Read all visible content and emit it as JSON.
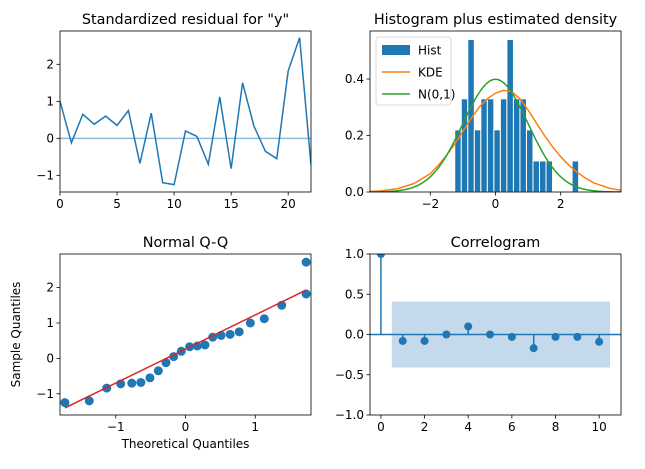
{
  "colors": {
    "blue": "#1f77b4",
    "orange": "#ff7f0e",
    "green": "#2ca02c",
    "red": "#d62728",
    "band": "#c5d9ec"
  },
  "chart_data": [
    {
      "id": "resid",
      "type": "line",
      "title": "Standardized residual for \"y\"",
      "xlabel": "",
      "ylabel": "",
      "xlim": [
        0,
        22
      ],
      "ylim": [
        -1.45,
        2.9
      ],
      "xticks": [
        0,
        5,
        10,
        15,
        20
      ],
      "yticks": [
        -1,
        0,
        1,
        2
      ],
      "hline": 0,
      "series": [
        {
          "x": [
            0,
            1,
            2,
            3,
            4,
            5,
            6,
            7,
            8,
            9,
            10,
            11,
            12,
            13,
            14,
            15,
            16,
            17,
            18,
            19,
            20,
            21,
            22
          ],
          "values": [
            1.0,
            -0.12,
            0.65,
            0.38,
            0.6,
            0.35,
            0.75,
            -0.68,
            0.68,
            -1.2,
            -1.25,
            0.2,
            0.05,
            -0.7,
            1.12,
            -0.82,
            1.5,
            0.33,
            -0.35,
            -0.55,
            1.82,
            2.72,
            -0.72
          ]
        }
      ]
    },
    {
      "id": "hist",
      "type": "bar",
      "title": "Histogram plus estimated density",
      "xlabel": "",
      "ylabel": "",
      "xlim": [
        -3.85,
        3.85
      ],
      "ylim": [
        0,
        0.57
      ],
      "xticks": [
        -2,
        0,
        2
      ],
      "yticks": [
        0.0,
        0.2,
        0.4
      ],
      "legend": {
        "position": "upper-left",
        "entries": [
          "Hist",
          "KDE",
          "N(0,1)"
        ]
      },
      "bins": [
        {
          "left": -1.25,
          "width": 0.2,
          "value": 0.22
        },
        {
          "left": -1.05,
          "width": 0.2,
          "value": 0.33
        },
        {
          "left": -0.85,
          "width": 0.2,
          "value": 0.54
        },
        {
          "left": -0.65,
          "width": 0.2,
          "value": 0.22
        },
        {
          "left": -0.45,
          "width": 0.2,
          "value": 0.33
        },
        {
          "left": -0.25,
          "width": 0.2,
          "value": 0.33
        },
        {
          "left": -0.05,
          "width": 0.2,
          "value": 0.22
        },
        {
          "left": 0.15,
          "width": 0.2,
          "value": 0.33
        },
        {
          "left": 0.35,
          "width": 0.2,
          "value": 0.54
        },
        {
          "left": 0.55,
          "width": 0.2,
          "value": 0.33
        },
        {
          "left": 0.75,
          "width": 0.2,
          "value": 0.33
        },
        {
          "left": 0.95,
          "width": 0.2,
          "value": 0.22
        },
        {
          "left": 1.15,
          "width": 0.2,
          "value": 0.11
        },
        {
          "left": 1.35,
          "width": 0.2,
          "value": 0.11
        },
        {
          "left": 1.55,
          "width": 0.2,
          "value": 0.11
        },
        {
          "left": 2.35,
          "width": 0.2,
          "value": 0.11
        }
      ],
      "kde": {
        "x": [
          -3.85,
          -3.5,
          -3.0,
          -2.5,
          -2.0,
          -1.75,
          -1.5,
          -1.25,
          -1.0,
          -0.75,
          -0.5,
          -0.25,
          0.0,
          0.25,
          0.5,
          0.75,
          1.0,
          1.25,
          1.5,
          1.75,
          2.0,
          2.25,
          2.5,
          2.75,
          3.0,
          3.5,
          3.85
        ],
        "values": [
          0.002,
          0.004,
          0.012,
          0.03,
          0.065,
          0.095,
          0.13,
          0.17,
          0.215,
          0.26,
          0.3,
          0.33,
          0.35,
          0.36,
          0.355,
          0.33,
          0.29,
          0.245,
          0.2,
          0.16,
          0.125,
          0.095,
          0.07,
          0.05,
          0.033,
          0.013,
          0.006
        ]
      },
      "normal": {
        "mean": 0,
        "sd": 1
      }
    },
    {
      "id": "qq",
      "type": "scatter",
      "title": "Normal Q-Q",
      "xlabel": "Theoretical Quantiles",
      "ylabel": "Sample Quantiles",
      "xlim": [
        -1.8,
        1.8
      ],
      "ylim": [
        -1.6,
        2.95
      ],
      "xticks": [
        -1,
        0,
        1
      ],
      "yticks": [
        -1,
        0,
        1,
        2
      ],
      "points": {
        "x": [
          -1.73,
          -1.38,
          -1.13,
          -0.93,
          -0.77,
          -0.64,
          -0.51,
          -0.39,
          -0.28,
          -0.17,
          -0.06,
          0.06,
          0.17,
          0.28,
          0.39,
          0.51,
          0.64,
          0.77,
          0.93,
          1.13,
          1.38,
          1.73
        ],
        "values": [
          -1.25,
          -1.2,
          -0.84,
          -0.72,
          -0.7,
          -0.68,
          -0.55,
          -0.35,
          -0.12,
          0.05,
          0.2,
          0.33,
          0.35,
          0.38,
          0.6,
          0.65,
          0.68,
          0.75,
          1.0,
          1.12,
          1.5,
          1.82
        ]
      },
      "extra_point": {
        "x": 1.73,
        "value": 2.72
      },
      "fit_line": {
        "x": [
          -1.73,
          1.73
        ],
        "values": [
          -1.4,
          1.93
        ]
      }
    },
    {
      "id": "corr",
      "type": "scatter",
      "title": "Correlogram",
      "xlabel": "",
      "ylabel": "",
      "xlim": [
        -0.5,
        11
      ],
      "ylim": [
        -1.0,
        1.0
      ],
      "xticks": [
        0,
        2,
        4,
        6,
        8,
        10
      ],
      "yticks": [
        -1.0,
        -0.5,
        0.0,
        0.5,
        1.0
      ],
      "band": {
        "x": [
          0.5,
          10.5
        ],
        "limits": [
          -0.41,
          0.41
        ]
      },
      "lags": [
        0,
        1,
        2,
        3,
        4,
        5,
        6,
        7,
        8,
        9,
        10
      ],
      "values": [
        1.0,
        -0.08,
        -0.08,
        0.0,
        0.1,
        0.0,
        -0.03,
        -0.17,
        -0.03,
        -0.03,
        -0.09
      ]
    }
  ]
}
